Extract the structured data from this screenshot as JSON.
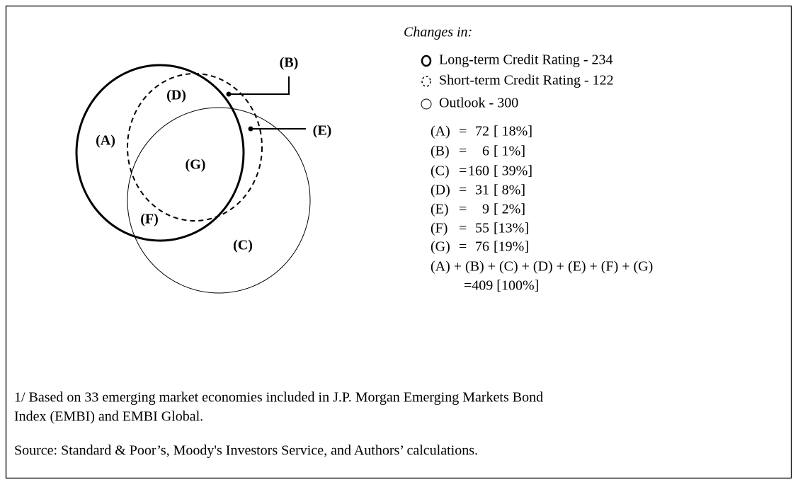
{
  "diagram": {
    "region_labels": [
      "(A)",
      "(B)",
      "(C)",
      "(D)",
      "(E)",
      "(F)",
      "(G)"
    ],
    "legend": {
      "title": "Changes in:",
      "items": [
        "Long-term Credit Rating - 234",
        "Short-term Credit Rating - 122",
        "Outlook - 300"
      ]
    },
    "rows": [
      [
        "(A)",
        "=",
        "72",
        "[ 18%]"
      ],
      [
        "(B)",
        "=",
        "6",
        "[ 1%]"
      ],
      [
        "(C)",
        "=",
        "160",
        "[ 39%]"
      ],
      [
        "(D)",
        "=",
        "31",
        "[ 8%]"
      ],
      [
        "(E)",
        "=",
        "9",
        "[ 2%]"
      ],
      [
        "(F)",
        "=",
        "55",
        "[13%]"
      ],
      [
        "(G)",
        "=",
        "76",
        "[19%]"
      ]
    ],
    "total": {
      "expression": "(A) + (B) + (C) + (D) + (E) + (F) + (G)",
      "value": "=409 [100%]"
    }
  },
  "notes": [
    "1/ Based on 33 emerging market economies included in J.P. Morgan Emerging Markets Bond",
    "Index (EMBI) and EMBI Global.",
    "Source: Standard & Poor’s, Moody's Investors Service, and Authors’ calculations."
  ]
}
